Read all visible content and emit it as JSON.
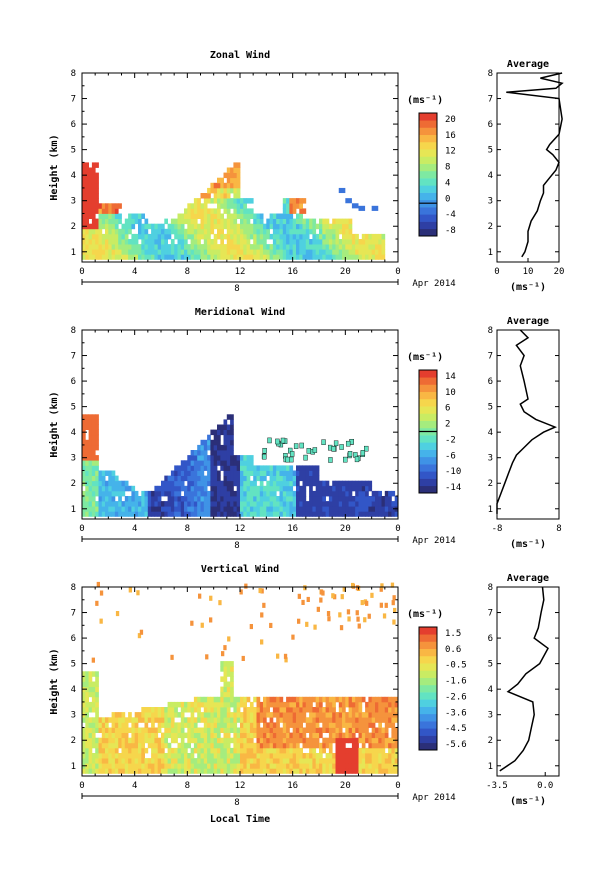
{
  "x_label": "Local Time",
  "colormap": [
    "#2b2f78",
    "#2e3fa4",
    "#3256c7",
    "#3a74db",
    "#3f93e6",
    "#45b3ea",
    "#4fd0e0",
    "#62e3c2",
    "#7ee9a2",
    "#a5ec7e",
    "#c9ec63",
    "#e6e655",
    "#f6d64c",
    "#f9b744",
    "#f5933c",
    "#ee6b34",
    "#e43e2e"
  ],
  "chart_data": [
    {
      "type": "heatmap",
      "title": "Zonal Wind",
      "ylabel": "Height (km)",
      "ylim": [
        0.6,
        8
      ],
      "yticks": [
        "1",
        "2",
        "3",
        "4",
        "5",
        "6",
        "7",
        "8"
      ],
      "xlim": [
        0,
        24
      ],
      "xticks": [
        "0",
        "4",
        "8",
        "12",
        "16",
        "20",
        "0"
      ],
      "date_label": "8",
      "month_label": "Apr 2014",
      "colorbar": {
        "unit": "(ms⁻¹)",
        "min": -8,
        "max": 22,
        "zero_line": 0,
        "ticks": [
          "20",
          "16",
          "12",
          "8",
          "4",
          "0",
          "-4",
          "-8"
        ]
      },
      "profile": {
        "title": "Average",
        "xlim": [
          0,
          20
        ],
        "xticks": [
          "0",
          "10",
          "20"
        ],
        "xlabel": "(ms⁻¹)",
        "points": [
          [
            8,
            0.8
          ],
          [
            9,
            1.0
          ],
          [
            10,
            1.4
          ],
          [
            10,
            1.8
          ],
          [
            11,
            2.2
          ],
          [
            13,
            2.6
          ],
          [
            14,
            3.0
          ],
          [
            15,
            3.3
          ],
          [
            15,
            3.6
          ],
          [
            17,
            3.9
          ],
          [
            19,
            4.2
          ],
          [
            20,
            4.5
          ],
          [
            18,
            4.8
          ],
          [
            16,
            5.0
          ],
          [
            17,
            5.2
          ],
          [
            20,
            5.6
          ],
          [
            21,
            6.2
          ],
          [
            20,
            7.0
          ],
          [
            3,
            7.25
          ],
          [
            19,
            7.4
          ],
          [
            21,
            7.6
          ],
          [
            14,
            7.8
          ],
          [
            21,
            8.0
          ]
        ]
      }
    },
    {
      "type": "heatmap",
      "title": "Meridional Wind",
      "ylabel": "Height (km)",
      "ylim": [
        0.6,
        8
      ],
      "yticks": [
        "1",
        "2",
        "3",
        "4",
        "5",
        "6",
        "7",
        "8"
      ],
      "xlim": [
        0,
        24
      ],
      "xticks": [
        "0",
        "4",
        "8",
        "12",
        "16",
        "20",
        "0"
      ],
      "date_label": "8",
      "month_label": "Apr 2014",
      "colorbar": {
        "unit": "(ms⁻¹)",
        "min": -16,
        "max": 16,
        "zero_line": 0,
        "ticks": [
          "14",
          "10",
          "6",
          "2",
          "-2",
          "-6",
          "-10",
          "-14"
        ]
      },
      "profile": {
        "title": "Average",
        "xlim": [
          -8,
          8
        ],
        "xticks": [
          "-8",
          "8"
        ],
        "xlabel": "(ms⁻¹)",
        "points": [
          [
            -8,
            0.8
          ],
          [
            -8,
            1.2
          ],
          [
            -7,
            1.6
          ],
          [
            -6,
            2.0
          ],
          [
            -5,
            2.4
          ],
          [
            -4,
            2.8
          ],
          [
            -3,
            3.1
          ],
          [
            -1,
            3.4
          ],
          [
            1,
            3.7
          ],
          [
            4,
            4.0
          ],
          [
            7,
            4.2
          ],
          [
            2,
            4.5
          ],
          [
            -1,
            4.8
          ],
          [
            -2,
            5.1
          ],
          [
            0,
            5.3
          ],
          [
            -1,
            6.0
          ],
          [
            -2,
            6.6
          ],
          [
            -1,
            7.0
          ],
          [
            -3,
            7.4
          ],
          [
            0,
            7.7
          ],
          [
            -2,
            8.0
          ]
        ]
      }
    },
    {
      "type": "heatmap",
      "title": "Vertical Wind",
      "ylabel": "Height (km)",
      "ylim": [
        0.6,
        8
      ],
      "yticks": [
        "1",
        "2",
        "3",
        "4",
        "5",
        "6",
        "7",
        "8"
      ],
      "xlim": [
        0,
        24
      ],
      "xticks": [
        "0",
        "4",
        "8",
        "12",
        "16",
        "20",
        "0"
      ],
      "date_label": "8",
      "month_label": "Apr 2014",
      "colorbar": {
        "unit": "(ms⁻¹)",
        "min": -6.1,
        "max": 2.0,
        "zero_line": null,
        "ticks": [
          "1.5",
          "0.6",
          "-0.5",
          "-1.6",
          "-2.6",
          "-3.6",
          "-4.5",
          "-5.6"
        ]
      },
      "profile": {
        "title": "Average",
        "xlim": [
          -3.5,
          1.0
        ],
        "xticks": [
          "-3.5",
          "0.0"
        ],
        "xlabel": "(ms⁻¹)",
        "points": [
          [
            -3.3,
            0.8
          ],
          [
            -2.2,
            1.2
          ],
          [
            -1.6,
            1.6
          ],
          [
            -1.2,
            2.0
          ],
          [
            -1.0,
            2.5
          ],
          [
            -0.8,
            3.0
          ],
          [
            -0.9,
            3.5
          ],
          [
            -2.7,
            3.9
          ],
          [
            -2.0,
            4.2
          ],
          [
            -1.4,
            4.6
          ],
          [
            -0.4,
            5.0
          ],
          [
            0.2,
            5.6
          ],
          [
            -0.8,
            6.0
          ],
          [
            -0.5,
            6.4
          ],
          [
            -0.3,
            7.0
          ],
          [
            -0.1,
            7.5
          ],
          [
            -0.2,
            8.0
          ]
        ]
      }
    }
  ]
}
